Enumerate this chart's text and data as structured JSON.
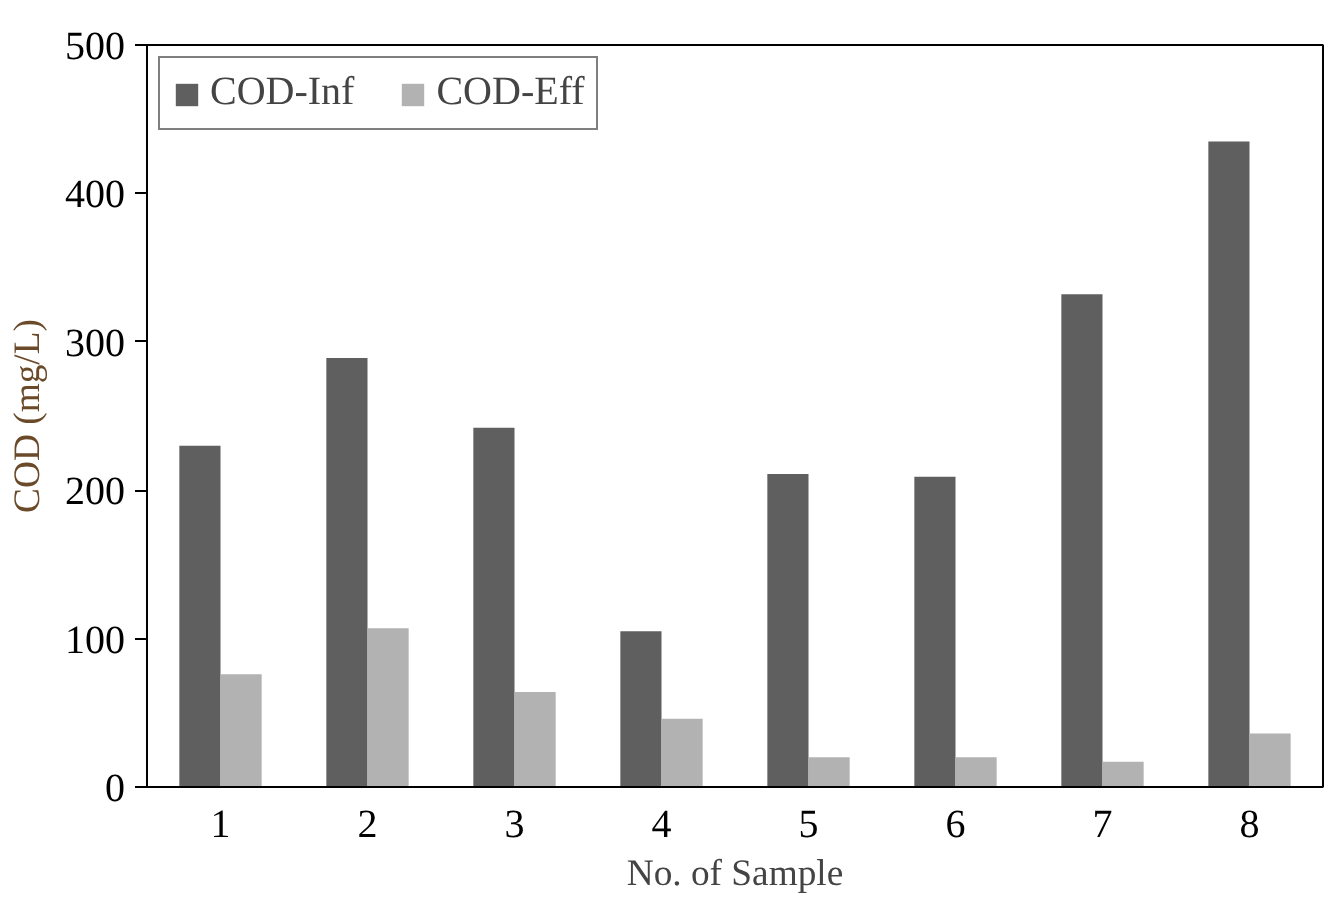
{
  "chart_data": {
    "type": "bar",
    "xlabel": "No. of Sample",
    "ylabel": "COD (mg/L)",
    "categories": [
      "1",
      "2",
      "3",
      "4",
      "5",
      "6",
      "7",
      "8"
    ],
    "series": [
      {
        "name": "COD-Inf",
        "color": "#5f5f5f",
        "values": [
          230,
          289,
          242,
          105,
          211,
          209,
          332,
          435
        ]
      },
      {
        "name": "COD-Eff",
        "color": "#b2b2b2",
        "values": [
          76,
          107,
          64,
          46,
          20,
          20,
          17,
          36
        ]
      }
    ],
    "ylim": [
      0,
      500
    ],
    "yticks": [
      0,
      100,
      200,
      300,
      400,
      500
    ],
    "grid": false,
    "legend": "top left"
  }
}
